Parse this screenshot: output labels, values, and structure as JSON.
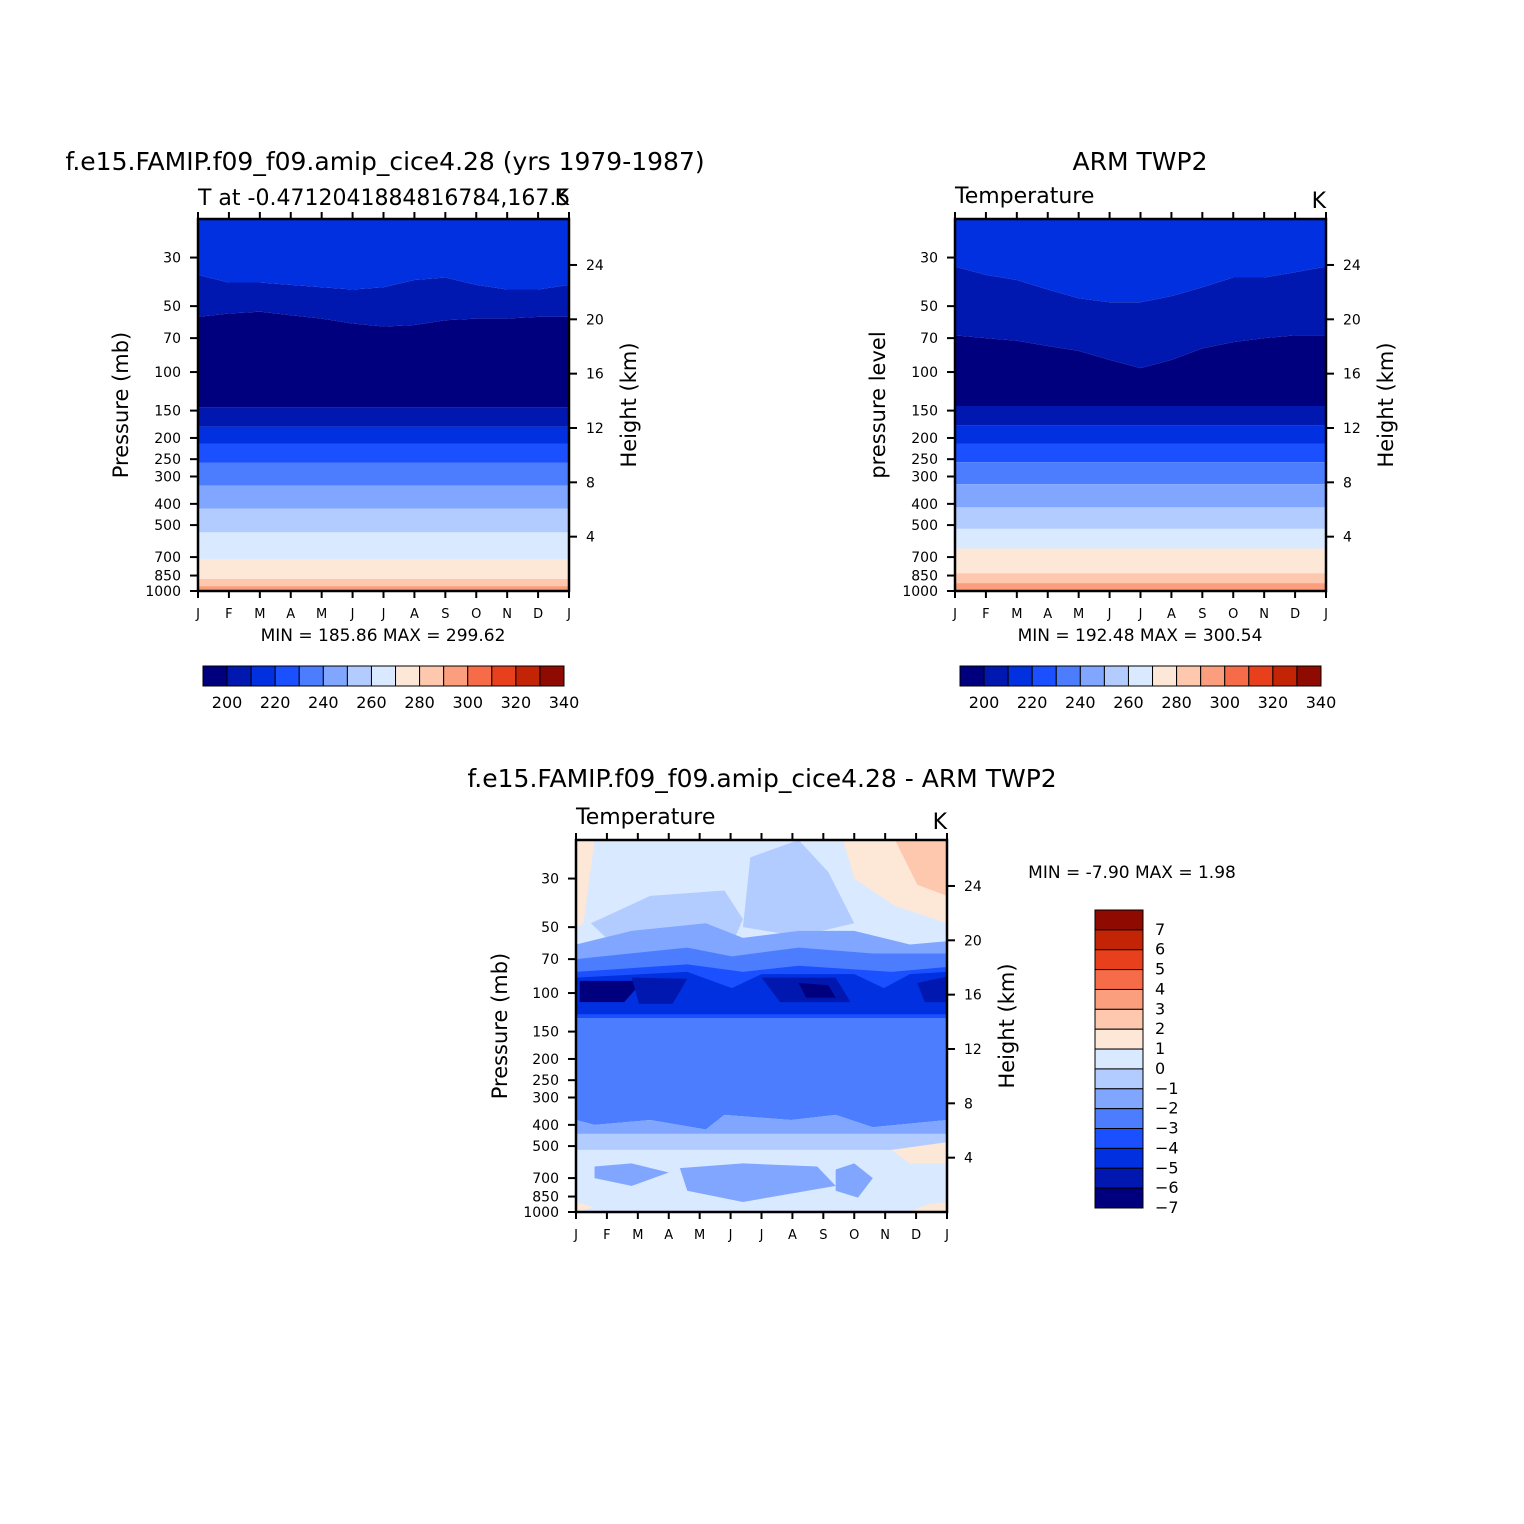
{
  "panel_a": {
    "title": "f.e15.FAMIP.f09_f09.amip_cice4.28 (yrs 1979-1987)",
    "subtitle": "T at -0.4712041884816784,167.5",
    "units": "K",
    "ylabel": "Pressure (mb)",
    "y2label": "Height (km)",
    "stats": "MIN = 185.86 MAX = 299.62"
  },
  "panel_b": {
    "title": "ARM TWP2",
    "subtitle": "Temperature",
    "units": "K",
    "ylabel": "pressure level",
    "y2label": "Height (km)",
    "stats": "MIN = 192.48 MAX = 300.54"
  },
  "panel_c": {
    "title": "f.e15.FAMIP.f09_f09.amip_cice4.28 - ARM TWP2",
    "subtitle": "Temperature",
    "units": "K",
    "ylabel": "Pressure (mb)",
    "y2label": "Height (km)",
    "stats": "MIN = -7.90 MAX = 1.98"
  },
  "chart_data": [
    {
      "type": "heatmap",
      "id": "panel_a",
      "x_categories": [
        "J",
        "F",
        "M",
        "A",
        "M",
        "J",
        "J",
        "A",
        "S",
        "O",
        "N",
        "D",
        "J"
      ],
      "y_pressure_ticks": [
        30,
        50,
        70,
        100,
        150,
        200,
        250,
        300,
        400,
        500,
        700,
        850,
        1000
      ],
      "y2_height_ticks": [
        4,
        8,
        12,
        16,
        20,
        24
      ],
      "contour_levels": [
        200,
        210,
        220,
        230,
        240,
        250,
        260,
        270,
        280,
        290,
        300,
        310,
        320,
        330,
        340
      ],
      "colorbar_labels": [
        "200",
        "220",
        "240",
        "260",
        "280",
        "300",
        "320",
        "340"
      ],
      "min": 185.86,
      "max": 299.62
    },
    {
      "type": "heatmap",
      "id": "panel_b",
      "x_categories": [
        "J",
        "F",
        "M",
        "A",
        "M",
        "J",
        "J",
        "A",
        "S",
        "O",
        "N",
        "D",
        "J"
      ],
      "y_pressure_ticks": [
        30,
        50,
        70,
        100,
        150,
        200,
        250,
        300,
        400,
        500,
        700,
        850,
        1000
      ],
      "y2_height_ticks": [
        4,
        8,
        12,
        16,
        20,
        24
      ],
      "contour_levels": [
        200,
        210,
        220,
        230,
        240,
        250,
        260,
        270,
        280,
        290,
        300,
        310,
        320,
        330,
        340
      ],
      "colorbar_labels": [
        "200",
        "220",
        "240",
        "260",
        "280",
        "300",
        "320",
        "340"
      ],
      "min": 192.48,
      "max": 300.54
    },
    {
      "type": "heatmap",
      "id": "panel_c",
      "x_categories": [
        "J",
        "F",
        "M",
        "A",
        "M",
        "J",
        "J",
        "A",
        "S",
        "O",
        "N",
        "D",
        "J"
      ],
      "y_pressure_ticks": [
        30,
        50,
        70,
        100,
        150,
        200,
        250,
        300,
        400,
        500,
        700,
        850,
        1000
      ],
      "y2_height_ticks": [
        4,
        8,
        12,
        16,
        20,
        24
      ],
      "contour_levels": [
        -7,
        -6,
        -5,
        -4,
        -3,
        -2,
        -1,
        0,
        1,
        2,
        3,
        4,
        5,
        6,
        7
      ],
      "colorbar_labels": [
        "7",
        "6",
        "5",
        "4",
        "3",
        "2",
        "1",
        "0",
        "-1",
        "-2",
        "-3",
        "-4",
        "-5",
        "-6",
        "-7"
      ],
      "min": -7.9,
      "max": 1.98
    }
  ],
  "palette": [
    "#00007f",
    "#0018b0",
    "#0030e0",
    "#1a50ff",
    "#4c7dff",
    "#80a6ff",
    "#b3ccff",
    "#d9e9ff",
    "#fde8d7",
    "#fdc8ad",
    "#fb9e7d",
    "#f76c48",
    "#e8401c",
    "#c42406",
    "#8f0a00"
  ]
}
